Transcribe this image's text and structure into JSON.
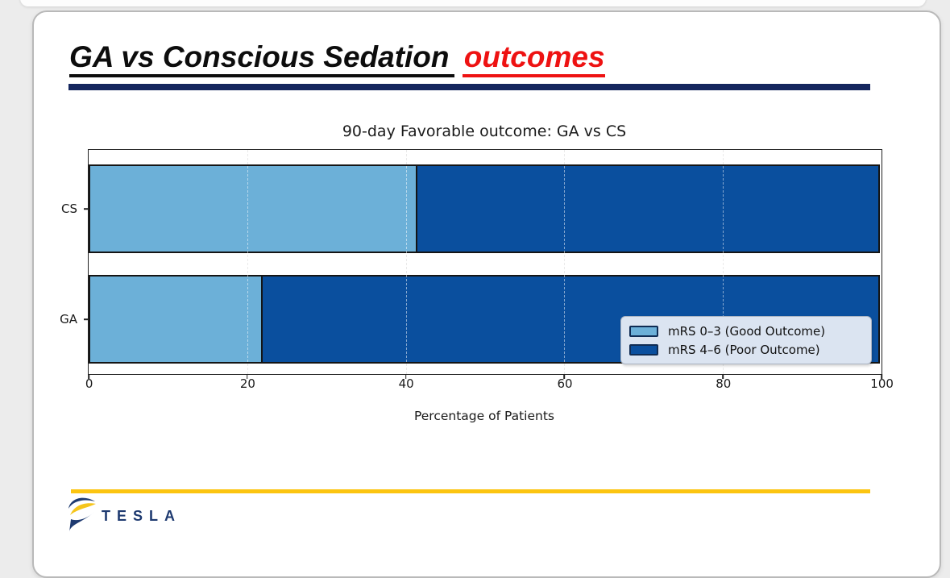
{
  "page": {
    "background_color": "#ececec"
  },
  "slide": {
    "title_main": "GA vs Conscious Sedation",
    "title_accent": "outcomes",
    "title_accent_color": "#ee1212",
    "top_rule_color": "#15265e",
    "bottom_rule_color": "#fcc511",
    "logo_text": "TESLA",
    "logo_color": "#1e3a70",
    "logo_icon": "tesla-swirl-icon",
    "logo_icon_colors": {
      "navy": "#1e3a70",
      "yellow": "#f5c51c"
    }
  },
  "chart_data": {
    "type": "bar",
    "orientation": "horizontal",
    "stacked": true,
    "title": "90-day Favorable outcome: GA vs CS",
    "categories": [
      "CS",
      "GA"
    ],
    "series": [
      {
        "name": "mRS 0–3 (Good Outcome)",
        "color": "#6cb0d8",
        "values": [
          41.5,
          22
        ]
      },
      {
        "name": "mRS 4–6 (Poor Outcome)",
        "color": "#0a4f9e",
        "values": [
          58.5,
          78
        ]
      }
    ],
    "xlabel": "Percentage of Patients",
    "xlim": [
      0,
      100
    ],
    "xticks": [
      0,
      20,
      40,
      60,
      80,
      100
    ],
    "grid": {
      "axis": "x",
      "style": "dashed"
    },
    "legend_position": "lower right",
    "bar_edge_color": "#151515",
    "legend_background": "#dbe4f1"
  }
}
